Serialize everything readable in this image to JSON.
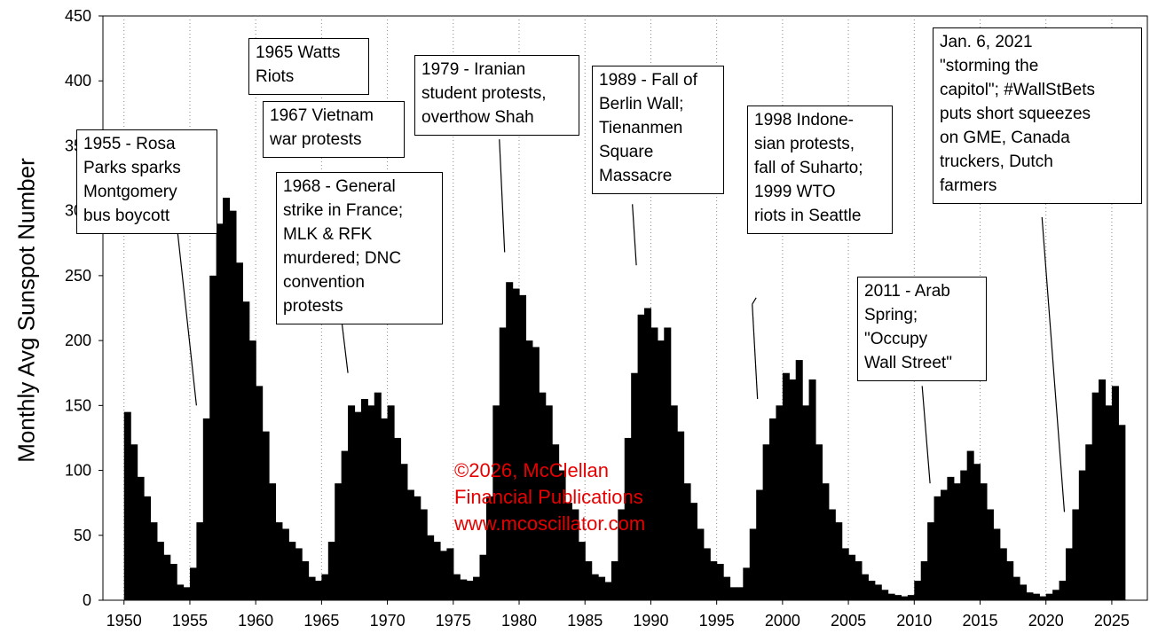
{
  "chart_data": {
    "type": "bar",
    "ylabel": "Monthly Avg Sunspot Number",
    "xlabel": "",
    "title": "",
    "ylim": [
      0,
      450
    ],
    "xlim": [
      1950,
      2026
    ],
    "yticks": [
      0,
      50,
      100,
      150,
      200,
      250,
      300,
      350,
      400,
      450
    ],
    "ytick_labels": [
      "0",
      "50",
      "100",
      "150",
      "200",
      "250",
      "300",
      "350",
      "400",
      "450"
    ],
    "xticks": [
      1950,
      1955,
      1960,
      1965,
      1970,
      1975,
      1980,
      1985,
      1990,
      1995,
      2000,
      2005,
      2010,
      2015,
      2020,
      2025
    ],
    "xtick_labels": [
      "1950",
      "1955",
      "1960",
      "1965",
      "1970",
      "1975",
      "1980",
      "1985",
      "1990",
      "1995",
      "2000",
      "2005",
      "2010",
      "2015",
      "2020",
      "2025"
    ],
    "grid": "vertical dotted",
    "bar_color": "#000000",
    "series": [
      {
        "sampling": "semiannual",
        "x": [
          1950.0,
          1950.5,
          1951.0,
          1951.5,
          1952.0,
          1952.5,
          1953.0,
          1953.5,
          1954.0,
          1954.5,
          1955.0,
          1955.5,
          1956.0,
          1956.5,
          1957.0,
          1957.5,
          1958.0,
          1958.5,
          1959.0,
          1959.5,
          1960.0,
          1960.5,
          1961.0,
          1961.5,
          1962.0,
          1962.5,
          1963.0,
          1963.5,
          1964.0,
          1964.5,
          1965.0,
          1965.5,
          1966.0,
          1966.5,
          1967.0,
          1967.5,
          1968.0,
          1968.5,
          1969.0,
          1969.5,
          1970.0,
          1970.5,
          1971.0,
          1971.5,
          1972.0,
          1972.5,
          1973.0,
          1973.5,
          1974.0,
          1974.5,
          1975.0,
          1975.5,
          1976.0,
          1976.5,
          1977.0,
          1977.5,
          1978.0,
          1978.5,
          1979.0,
          1979.5,
          1980.0,
          1980.5,
          1981.0,
          1981.5,
          1982.0,
          1982.5,
          1983.0,
          1983.5,
          1984.0,
          1984.5,
          1985.0,
          1985.5,
          1986.0,
          1986.5,
          1987.0,
          1987.5,
          1988.0,
          1988.5,
          1989.0,
          1989.5,
          1990.0,
          1990.5,
          1991.0,
          1991.5,
          1992.0,
          1992.5,
          1993.0,
          1993.5,
          1994.0,
          1994.5,
          1995.0,
          1995.5,
          1996.0,
          1996.5,
          1997.0,
          1997.5,
          1998.0,
          1998.5,
          1999.0,
          1999.5,
          2000.0,
          2000.5,
          2001.0,
          2001.5,
          2002.0,
          2002.5,
          2003.0,
          2003.5,
          2004.0,
          2004.5,
          2005.0,
          2005.5,
          2006.0,
          2006.5,
          2007.0,
          2007.5,
          2008.0,
          2008.5,
          2009.0,
          2009.5,
          2010.0,
          2010.5,
          2011.0,
          2011.5,
          2012.0,
          2012.5,
          2013.0,
          2013.5,
          2014.0,
          2014.5,
          2015.0,
          2015.5,
          2016.0,
          2016.5,
          2017.0,
          2017.5,
          2018.0,
          2018.5,
          2019.0,
          2019.5,
          2020.0,
          2020.5,
          2021.0,
          2021.5,
          2022.0,
          2022.5,
          2023.0,
          2023.5,
          2024.0,
          2024.5,
          2025.0,
          2025.5
        ],
        "values": [
          145,
          120,
          95,
          80,
          60,
          45,
          35,
          28,
          12,
          10,
          25,
          60,
          140,
          250,
          290,
          310,
          300,
          260,
          230,
          200,
          165,
          130,
          90,
          60,
          55,
          45,
          40,
          30,
          18,
          15,
          20,
          45,
          90,
          115,
          150,
          145,
          155,
          150,
          160,
          140,
          150,
          125,
          105,
          85,
          80,
          70,
          50,
          45,
          38,
          40,
          20,
          16,
          15,
          18,
          35,
          80,
          150,
          210,
          245,
          240,
          235,
          200,
          195,
          160,
          150,
          120,
          100,
          75,
          70,
          45,
          30,
          20,
          18,
          14,
          30,
          70,
          125,
          175,
          220,
          225,
          210,
          200,
          210,
          150,
          130,
          90,
          75,
          55,
          40,
          30,
          28,
          18,
          10,
          10,
          25,
          55,
          85,
          120,
          140,
          150,
          175,
          170,
          185,
          150,
          170,
          120,
          90,
          70,
          60,
          40,
          35,
          30,
          20,
          15,
          12,
          8,
          5,
          4,
          3,
          4,
          15,
          30,
          60,
          80,
          85,
          95,
          90,
          100,
          115,
          105,
          90,
          70,
          55,
          40,
          30,
          18,
          12,
          6,
          5,
          3,
          5,
          8,
          15,
          40,
          70,
          100,
          120,
          160,
          170,
          150,
          165,
          135
        ]
      }
    ],
    "annotations": [
      "1955 - Rosa\nParks sparks\nMontgomery\nbus boycott",
      "1965 Watts\nRiots",
      "1967 Vietnam\nwar protests",
      "1968 - General\nstrike in France;\nMLK & RFK\nmurdered; DNC\nconvention\nprotests",
      "1979 - Iranian\nstudent protests,\noverthow Shah",
      "1989 - Fall of\nBerlin Wall;\nTienanmen\nSquare\nMassacre",
      "1998 Indone-\nsian protests,\nfall of Suharto;\n1999 WTO\nriots in Seattle",
      "2011 - Arab\nSpring;\n\"Occupy\nWall Street\"",
      "Jan. 6, 2021\n\"storming the\ncapitol\"; #WallStBets\nputs short squeezes\non GME, Canada\ntruckers, Dutch\nfarmers"
    ],
    "copyright": "©2026, McClellan\nFinancial Publications\nwww.mcoscillator.com"
  }
}
